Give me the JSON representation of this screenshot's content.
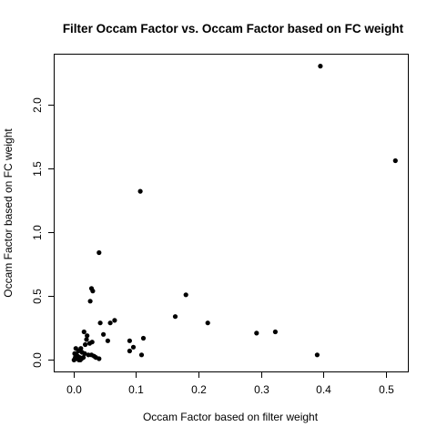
{
  "chart_data": {
    "type": "scatter",
    "title": "Filter Occam Factor vs. Occam Factor based on FC weight",
    "xlabel": "Occam Factor based on filter weight",
    "ylabel": "Occam Factor based on FC weight",
    "xlim": [
      -0.03,
      0.535
    ],
    "ylim": [
      -0.09,
      2.39
    ],
    "xticks": [
      0.0,
      0.1,
      0.2,
      0.3,
      0.4,
      0.5
    ],
    "xtick_labels": [
      "0.0",
      "0.1",
      "0.2",
      "0.3",
      "0.4",
      "0.5"
    ],
    "yticks": [
      0.0,
      0.5,
      1.0,
      1.5,
      2.0
    ],
    "ytick_labels": [
      "0.0",
      "0.5",
      "1.0",
      "1.5",
      "2.0"
    ],
    "grid": false,
    "legend": "none",
    "marker_color": "#000000",
    "series": [
      {
        "points": [
          [
            0.395,
            2.3
          ],
          [
            0.515,
            1.56
          ],
          [
            0.107,
            1.32
          ],
          [
            0.041,
            0.84
          ],
          [
            0.029,
            0.56
          ],
          [
            0.031,
            0.54
          ],
          [
            0.027,
            0.46
          ],
          [
            0.18,
            0.51
          ],
          [
            0.163,
            0.34
          ],
          [
            0.066,
            0.31
          ],
          [
            0.059,
            0.29
          ],
          [
            0.043,
            0.29
          ],
          [
            0.215,
            0.29
          ],
          [
            0.293,
            0.21
          ],
          [
            0.323,
            0.22
          ],
          [
            0.39,
            0.04
          ],
          [
            0.112,
            0.17
          ],
          [
            0.09,
            0.15
          ],
          [
            0.096,
            0.1
          ],
          [
            0.09,
            0.07
          ],
          [
            0.109,
            0.04
          ],
          [
            0.048,
            0.2
          ],
          [
            0.055,
            0.15
          ],
          [
            0.017,
            0.22
          ],
          [
            0.022,
            0.19
          ],
          [
            0.021,
            0.16
          ],
          [
            0.026,
            0.13
          ],
          [
            0.019,
            0.12
          ],
          [
            0.03,
            0.14
          ],
          [
            0.012,
            0.09
          ],
          [
            0.004,
            0.09
          ],
          [
            0.008,
            0.07
          ],
          [
            0.014,
            0.06
          ],
          [
            0.018,
            0.05
          ],
          [
            0.024,
            0.04
          ],
          [
            0.029,
            0.04
          ],
          [
            0.033,
            0.03
          ],
          [
            0.036,
            0.02
          ],
          [
            0.041,
            0.01
          ],
          [
            0.002,
            0.05
          ],
          [
            0.005,
            0.04
          ],
          [
            0.003,
            0.02
          ],
          [
            0.006,
            0.01
          ],
          [
            0.009,
            0.0
          ],
          [
            0.001,
            0.0
          ],
          [
            0.004,
            0.01
          ],
          [
            0.01,
            0.02
          ],
          [
            0.013,
            0.01
          ],
          [
            0.016,
            0.02
          ],
          [
            0.007,
            0.03
          ],
          [
            0.011,
            0.0
          ]
        ]
      }
    ]
  }
}
